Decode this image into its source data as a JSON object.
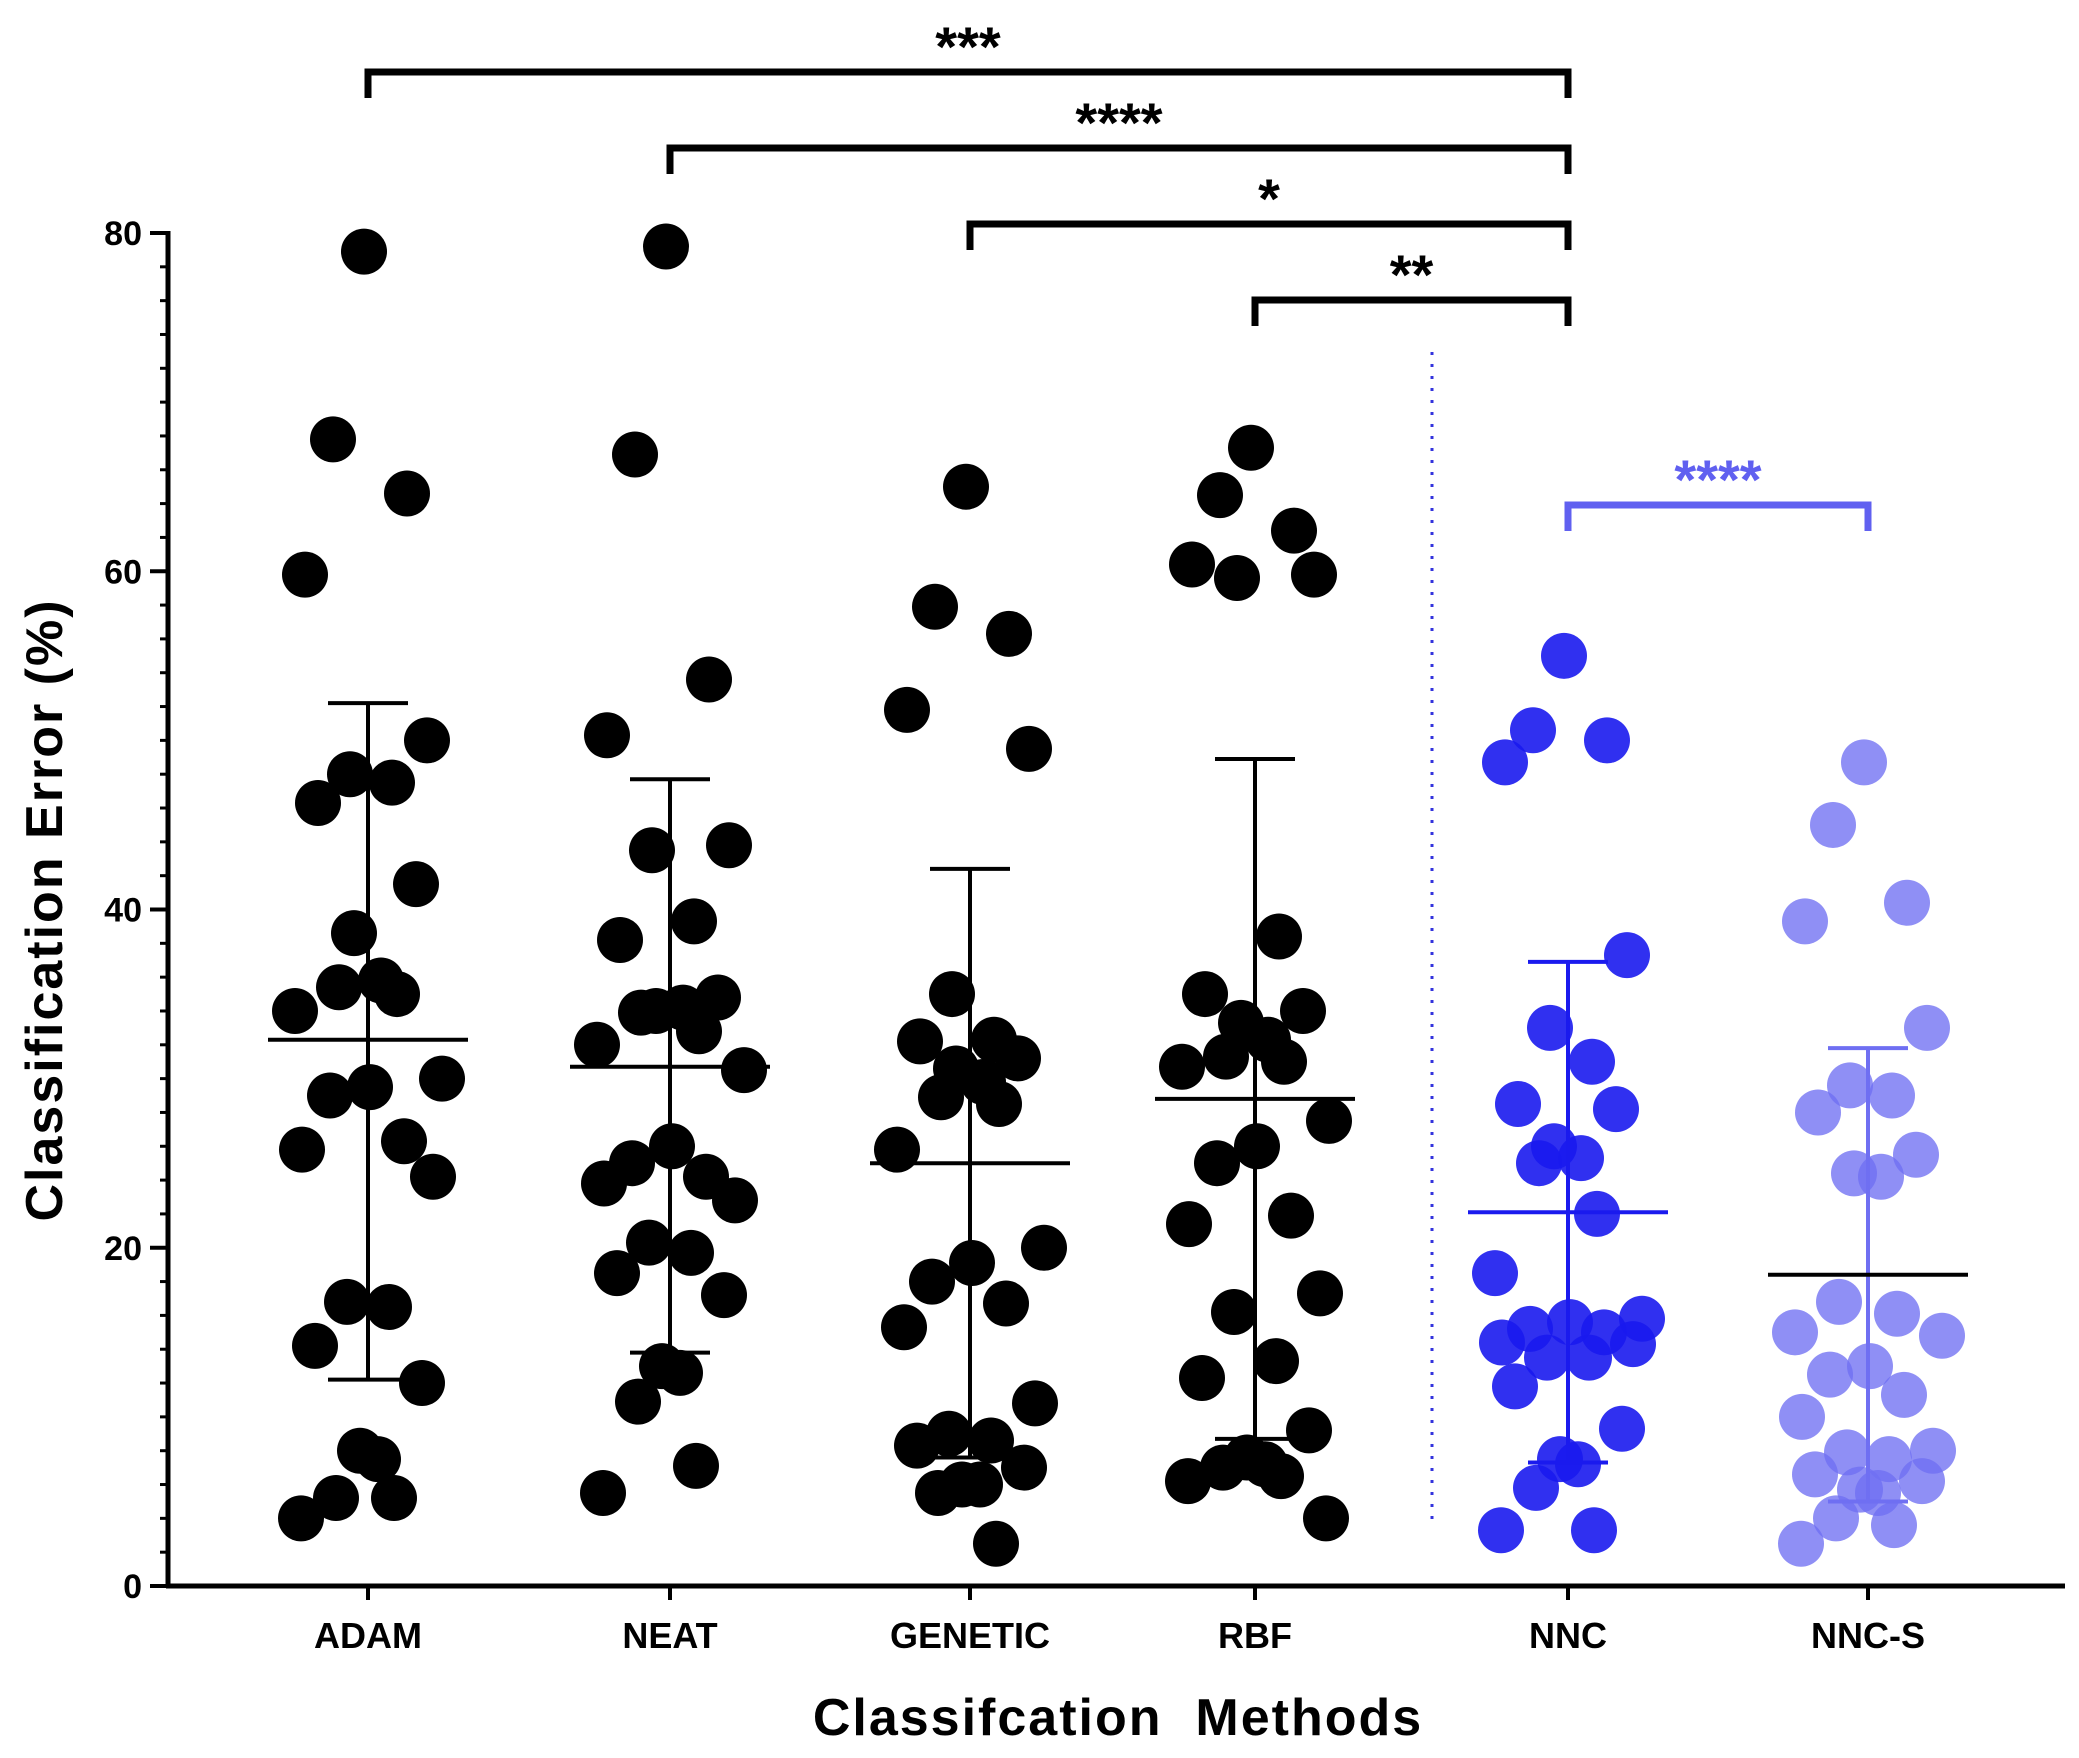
{
  "chart_data": {
    "type": "scatter",
    "xlabel": "Classifcation  Methods",
    "ylabel": "Classification Error (%)",
    "ylim": [
      0,
      80
    ],
    "yticks": [
      0,
      20,
      40,
      60,
      80
    ],
    "categories": [
      "ADAM",
      "NEAT",
      "GENETIC",
      "RBF",
      "NNC",
      "NNC-S"
    ],
    "colors": {
      "baseline": "#000000",
      "nnc": "#1a1aee",
      "nnc_s": "#6f6ff2",
      "sig_blue": "#6060f0",
      "divider": "#3333dd"
    },
    "series": [
      {
        "category": "ADAM",
        "mean": 32.3,
        "sd_low": 12.2,
        "sd_high": 52.2,
        "values": [
          78.9,
          67.8,
          64.6,
          59.8,
          50.0,
          48.0,
          47.5,
          46.3,
          41.5,
          38.6,
          35.8,
          35.4,
          35.0,
          34.0,
          30.0,
          29.5,
          29.0,
          26.3,
          25.8,
          24.2,
          16.8,
          16.5,
          14.2,
          12.0,
          8.0,
          7.5,
          5.2,
          5.2,
          4.0
        ]
      },
      {
        "category": "NEAT",
        "mean": 30.7,
        "sd_low": 13.8,
        "sd_high": 47.7,
        "values": [
          79.2,
          66.9,
          53.6,
          50.3,
          43.8,
          43.5,
          39.3,
          38.2,
          34.8,
          34.0,
          34.2,
          33.9,
          32.8,
          32.0,
          30.5,
          26.0,
          25.0,
          24.2,
          23.8,
          22.8,
          20.3,
          19.7,
          18.5,
          17.2,
          13.0,
          12.6,
          10.9,
          7.1,
          5.5
        ]
      },
      {
        "category": "GENETIC",
        "mean": 25.0,
        "sd_low": 7.6,
        "sd_high": 42.4,
        "values": [
          65.0,
          57.9,
          56.3,
          51.8,
          49.5,
          35.0,
          32.3,
          32.2,
          31.2,
          30.6,
          29.8,
          28.9,
          28.5,
          25.8,
          20.0,
          19.1,
          18.0,
          16.7,
          15.3,
          10.8,
          9.0,
          8.6,
          8.3,
          7.0,
          6.0,
          6.0,
          5.5,
          2.5
        ]
      },
      {
        "category": "RBF",
        "mean": 28.8,
        "sd_low": 8.7,
        "sd_high": 48.9,
        "values": [
          67.3,
          64.5,
          62.4,
          60.4,
          59.8,
          59.6,
          38.4,
          35.0,
          34.0,
          33.3,
          32.3,
          31.3,
          31.0,
          30.7,
          27.5,
          26.0,
          25.0,
          21.9,
          21.4,
          17.3,
          16.2,
          13.3,
          12.3,
          9.2,
          7.6,
          7.2,
          7.0,
          6.5,
          6.2,
          4.0
        ]
      },
      {
        "category": "NNC",
        "mean": 22.1,
        "sd_low": 7.3,
        "sd_high": 36.9,
        "values": [
          55.0,
          50.6,
          50.0,
          48.7,
          37.3,
          33.0,
          31.0,
          28.5,
          28.2,
          26.0,
          25.3,
          25.0,
          22.0,
          18.5,
          15.8,
          15.6,
          15.2,
          15.0,
          14.4,
          14.3,
          13.5,
          13.5,
          11.8,
          9.3,
          7.5,
          7.2,
          5.8,
          3.3,
          3.3
        ]
      },
      {
        "category": "NNC-S",
        "mean": 18.4,
        "sd_low": 5.0,
        "sd_high": 31.8,
        "values": [
          48.7,
          45.0,
          40.4,
          39.3,
          33.0,
          29.6,
          29.0,
          28.0,
          25.5,
          24.4,
          24.2,
          16.8,
          16.1,
          15.0,
          14.8,
          13.0,
          12.5,
          11.3,
          10.0,
          8.0,
          7.9,
          7.5,
          6.6,
          6.2,
          5.7,
          5.5,
          4.0,
          3.6,
          2.5
        ]
      }
    ],
    "significance": [
      {
        "from": "ADAM",
        "to": "NNC",
        "label": "***",
        "color": "#000000"
      },
      {
        "from": "NEAT",
        "to": "NNC",
        "label": "****",
        "color": "#000000"
      },
      {
        "from": "GENETIC",
        "to": "NNC",
        "label": "*",
        "color": "#000000"
      },
      {
        "from": "RBF",
        "to": "NNC",
        "label": "**",
        "color": "#000000"
      },
      {
        "from": "NNC",
        "to": "NNC-S",
        "label": "****",
        "color": "#6060f0"
      }
    ],
    "grid": false,
    "legend": "none"
  }
}
